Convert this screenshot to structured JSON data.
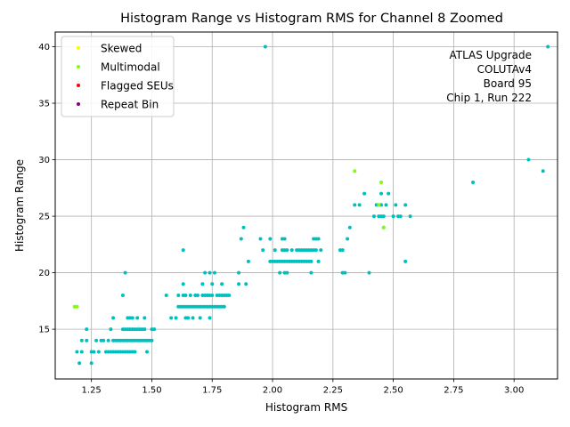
{
  "chart_data": {
    "type": "scatter",
    "title": "Histogram Range vs Histogram RMS for Channel 8 Zoomed",
    "xlabel": "Histogram RMS",
    "ylabel": "Histogram Range",
    "xlim": [
      1.1,
      3.18
    ],
    "ylim": [
      10.6,
      41.3
    ],
    "xticks": [
      1.25,
      1.5,
      1.75,
      2.0,
      2.25,
      2.5,
      2.75,
      3.0
    ],
    "xtick_labels": [
      "1.25",
      "1.50",
      "1.75",
      "2.00",
      "2.25",
      "2.50",
      "2.75",
      "3.00"
    ],
    "yticks": [
      15,
      20,
      25,
      30,
      35,
      40
    ],
    "ytick_labels": [
      "15",
      "20",
      "25",
      "30",
      "35",
      "40"
    ],
    "grid": true,
    "legend_position": "top-left",
    "legend": [
      {
        "label": "Skewed",
        "color": "#ffff00"
      },
      {
        "label": "Multimodal",
        "color": "#7fff00"
      },
      {
        "label": "Flagged SEUs",
        "color": "#ff0000"
      },
      {
        "label": "Repeat Bin",
        "color": "#800080"
      }
    ],
    "annotation": [
      "ATLAS Upgrade",
      "COLUTAv4",
      "Board 95",
      "Chip 1, Run 222"
    ],
    "series": [
      {
        "name": "Channel 8",
        "color": "#00bfbf",
        "points": [
          [
            1.19,
            13
          ],
          [
            1.2,
            12
          ],
          [
            1.21,
            13
          ],
          [
            1.21,
            14
          ],
          [
            1.23,
            14
          ],
          [
            1.25,
            12
          ],
          [
            1.25,
            13
          ],
          [
            1.26,
            13
          ],
          [
            1.27,
            14
          ],
          [
            1.28,
            13
          ],
          [
            1.3,
            14
          ],
          [
            1.31,
            13
          ],
          [
            1.32,
            13
          ],
          [
            1.32,
            14
          ],
          [
            1.33,
            13
          ],
          [
            1.33,
            15
          ],
          [
            1.34,
            13
          ],
          [
            1.34,
            14
          ],
          [
            1.35,
            13
          ],
          [
            1.35,
            14
          ],
          [
            1.36,
            13
          ],
          [
            1.36,
            14
          ],
          [
            1.37,
            13
          ],
          [
            1.37,
            14
          ],
          [
            1.38,
            13
          ],
          [
            1.38,
            14
          ],
          [
            1.38,
            15
          ],
          [
            1.38,
            18
          ],
          [
            1.39,
            13
          ],
          [
            1.39,
            14
          ],
          [
            1.39,
            15
          ],
          [
            1.39,
            20
          ],
          [
            1.4,
            13
          ],
          [
            1.4,
            14
          ],
          [
            1.4,
            15
          ],
          [
            1.4,
            16
          ],
          [
            1.41,
            13
          ],
          [
            1.41,
            14
          ],
          [
            1.41,
            15
          ],
          [
            1.41,
            16
          ],
          [
            1.42,
            13
          ],
          [
            1.42,
            14
          ],
          [
            1.42,
            15
          ],
          [
            1.42,
            16
          ],
          [
            1.43,
            13
          ],
          [
            1.43,
            14
          ],
          [
            1.43,
            15
          ],
          [
            1.44,
            14
          ],
          [
            1.44,
            15
          ],
          [
            1.44,
            16
          ],
          [
            1.45,
            14
          ],
          [
            1.45,
            15
          ],
          [
            1.46,
            14
          ],
          [
            1.46,
            15
          ],
          [
            1.47,
            14
          ],
          [
            1.47,
            15
          ],
          [
            1.47,
            16
          ],
          [
            1.48,
            13
          ],
          [
            1.48,
            14
          ],
          [
            1.49,
            14
          ],
          [
            1.5,
            14
          ],
          [
            1.5,
            15
          ],
          [
            1.51,
            15
          ],
          [
            1.23,
            15
          ],
          [
            1.34,
            16
          ],
          [
            1.29,
            14
          ],
          [
            1.56,
            18
          ],
          [
            1.58,
            16
          ],
          [
            1.6,
            16
          ],
          [
            1.61,
            17
          ],
          [
            1.61,
            18
          ],
          [
            1.62,
            17
          ],
          [
            1.63,
            17
          ],
          [
            1.63,
            18
          ],
          [
            1.63,
            19
          ],
          [
            1.63,
            22
          ],
          [
            1.64,
            16
          ],
          [
            1.64,
            17
          ],
          [
            1.64,
            18
          ],
          [
            1.65,
            16
          ],
          [
            1.65,
            17
          ],
          [
            1.66,
            17
          ],
          [
            1.66,
            18
          ],
          [
            1.67,
            16
          ],
          [
            1.67,
            17
          ],
          [
            1.68,
            17
          ],
          [
            1.68,
            18
          ],
          [
            1.69,
            17
          ],
          [
            1.69,
            18
          ],
          [
            1.7,
            16
          ],
          [
            1.7,
            17
          ],
          [
            1.71,
            17
          ],
          [
            1.71,
            18
          ],
          [
            1.71,
            19
          ],
          [
            1.72,
            17
          ],
          [
            1.72,
            18
          ],
          [
            1.72,
            20
          ],
          [
            1.73,
            17
          ],
          [
            1.73,
            18
          ],
          [
            1.74,
            16
          ],
          [
            1.74,
            17
          ],
          [
            1.74,
            18
          ],
          [
            1.74,
            20
          ],
          [
            1.75,
            17
          ],
          [
            1.75,
            18
          ],
          [
            1.75,
            19
          ],
          [
            1.76,
            17
          ],
          [
            1.76,
            20
          ],
          [
            1.77,
            17
          ],
          [
            1.77,
            18
          ],
          [
            1.78,
            17
          ],
          [
            1.78,
            18
          ],
          [
            1.79,
            17
          ],
          [
            1.79,
            18
          ],
          [
            1.79,
            19
          ],
          [
            1.8,
            17
          ],
          [
            1.8,
            18
          ],
          [
            1.81,
            18
          ],
          [
            1.82,
            18
          ],
          [
            1.86,
            19
          ],
          [
            1.86,
            20
          ],
          [
            1.87,
            23
          ],
          [
            1.88,
            24
          ],
          [
            1.89,
            19
          ],
          [
            1.9,
            21
          ],
          [
            1.95,
            23
          ],
          [
            1.96,
            22
          ],
          [
            1.97,
            40
          ],
          [
            1.99,
            21
          ],
          [
            1.99,
            23
          ],
          [
            2.0,
            21
          ],
          [
            2.01,
            21
          ],
          [
            2.01,
            22
          ],
          [
            2.02,
            21
          ],
          [
            2.03,
            20
          ],
          [
            2.03,
            21
          ],
          [
            2.04,
            21
          ],
          [
            2.04,
            22
          ],
          [
            2.04,
            23
          ],
          [
            2.05,
            20
          ],
          [
            2.05,
            21
          ],
          [
            2.05,
            22
          ],
          [
            2.05,
            23
          ],
          [
            2.06,
            20
          ],
          [
            2.06,
            21
          ],
          [
            2.06,
            22
          ],
          [
            2.07,
            21
          ],
          [
            2.08,
            21
          ],
          [
            2.08,
            22
          ],
          [
            2.09,
            21
          ],
          [
            2.1,
            21
          ],
          [
            2.1,
            22
          ],
          [
            2.11,
            21
          ],
          [
            2.11,
            22
          ],
          [
            2.12,
            21
          ],
          [
            2.12,
            22
          ],
          [
            2.13,
            21
          ],
          [
            2.13,
            22
          ],
          [
            2.14,
            21
          ],
          [
            2.14,
            22
          ],
          [
            2.15,
            21
          ],
          [
            2.15,
            22
          ],
          [
            2.16,
            20
          ],
          [
            2.16,
            21
          ],
          [
            2.16,
            22
          ],
          [
            2.17,
            22
          ],
          [
            2.17,
            23
          ],
          [
            2.18,
            22
          ],
          [
            2.18,
            23
          ],
          [
            2.19,
            21
          ],
          [
            2.19,
            23
          ],
          [
            2.2,
            22
          ],
          [
            2.28,
            22
          ],
          [
            2.29,
            20
          ],
          [
            2.29,
            22
          ],
          [
            2.3,
            20
          ],
          [
            2.31,
            23
          ],
          [
            2.32,
            24
          ],
          [
            2.34,
            26
          ],
          [
            2.36,
            26
          ],
          [
            2.38,
            27
          ],
          [
            2.4,
            20
          ],
          [
            2.42,
            25
          ],
          [
            2.43,
            26
          ],
          [
            2.44,
            25
          ],
          [
            2.44,
            26
          ],
          [
            2.45,
            25
          ],
          [
            2.45,
            26
          ],
          [
            2.45,
            27
          ],
          [
            2.46,
            24
          ],
          [
            2.46,
            25
          ],
          [
            2.47,
            26
          ],
          [
            2.48,
            27
          ],
          [
            2.5,
            25
          ],
          [
            2.51,
            26
          ],
          [
            2.52,
            25
          ],
          [
            2.53,
            25
          ],
          [
            2.55,
            21
          ],
          [
            2.55,
            26
          ],
          [
            2.57,
            25
          ],
          [
            2.83,
            28
          ],
          [
            3.06,
            30
          ],
          [
            3.12,
            29
          ],
          [
            3.14,
            40
          ]
        ]
      },
      {
        "name": "Multimodal",
        "color": "#7fff00",
        "points": [
          [
            1.18,
            17
          ],
          [
            1.19,
            17
          ],
          [
            2.34,
            29
          ],
          [
            2.45,
            28
          ],
          [
            2.44,
            26
          ],
          [
            2.46,
            24
          ]
        ]
      }
    ]
  }
}
